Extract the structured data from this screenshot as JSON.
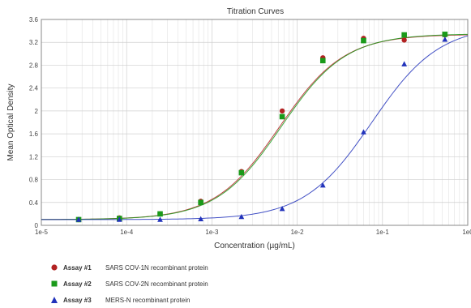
{
  "chart_data": {
    "type": "scatter",
    "title": "Titration Curves",
    "xlabel": "Concentration (µg/mL)",
    "ylabel": "Mean Optical Density",
    "x_scale": "log",
    "xlim": [
      1e-05,
      1
    ],
    "ylim": [
      0,
      3.6
    ],
    "x_ticks": [
      {
        "value": 1e-05,
        "label": "1e-5"
      },
      {
        "value": 0.0001,
        "label": "1e-4"
      },
      {
        "value": 0.001,
        "label": "1e-3"
      },
      {
        "value": 0.01,
        "label": "1e-2"
      },
      {
        "value": 0.1,
        "label": "1e-1"
      },
      {
        "value": 1,
        "label": "1e0"
      }
    ],
    "y_ticks": [
      {
        "value": 0,
        "label": "0"
      },
      {
        "value": 0.4,
        "label": "0.4"
      },
      {
        "value": 0.8,
        "label": "0.8"
      },
      {
        "value": 1.2,
        "label": "1.2"
      },
      {
        "value": 1.6,
        "label": "1.6"
      },
      {
        "value": 2,
        "label": "2"
      },
      {
        "value": 2.4,
        "label": "2.4"
      },
      {
        "value": 2.8,
        "label": "2.8"
      },
      {
        "value": 3.2,
        "label": "3.2"
      },
      {
        "value": 3.6,
        "label": "3.6"
      }
    ],
    "grid": true,
    "legend_position": "bottom",
    "series": [
      {
        "name": "Assay #1",
        "description": "SARS COV-1N recombinant protein",
        "marker": "circle",
        "color": "#b22222",
        "x": [
          2.74e-05,
          8.23e-05,
          0.000247,
          0.00074,
          0.00222,
          0.00667,
          0.02,
          0.06,
          0.18,
          0.54
        ],
        "y": [
          0.1,
          0.13,
          0.2,
          0.42,
          0.94,
          2.0,
          2.93,
          3.27,
          3.24,
          3.33
        ]
      },
      {
        "name": "Assay #2",
        "description": "SARS COV-2N recombinant protein",
        "marker": "square",
        "color": "#1a9a1a",
        "x": [
          2.74e-05,
          8.23e-05,
          0.000247,
          0.00074,
          0.00222,
          0.00667,
          0.02,
          0.06,
          0.18,
          0.54
        ],
        "y": [
          0.1,
          0.12,
          0.2,
          0.4,
          0.92,
          1.9,
          2.88,
          3.23,
          3.33,
          3.34
        ]
      },
      {
        "name": "Assay #3",
        "description": "MERS-N recombinant protein",
        "marker": "triangle",
        "color": "#2233bb",
        "x": [
          2.74e-05,
          8.23e-05,
          0.000247,
          0.00074,
          0.00222,
          0.00667,
          0.02,
          0.06,
          0.18,
          0.54
        ],
        "y": [
          0.1,
          0.1,
          0.1,
          0.11,
          0.15,
          0.29,
          0.7,
          1.63,
          2.82,
          3.25
        ]
      }
    ],
    "fits": [
      {
        "series": "Assay #1",
        "bottom": 0.1,
        "top": 3.34,
        "ec50": 0.0062,
        "hill": 1.15
      },
      {
        "series": "Assay #2",
        "bottom": 0.1,
        "top": 3.35,
        "ec50": 0.0065,
        "hill": 1.15
      },
      {
        "series": "Assay #3",
        "bottom": 0.1,
        "top": 3.5,
        "ec50": 0.075,
        "hill": 1.1
      }
    ]
  }
}
